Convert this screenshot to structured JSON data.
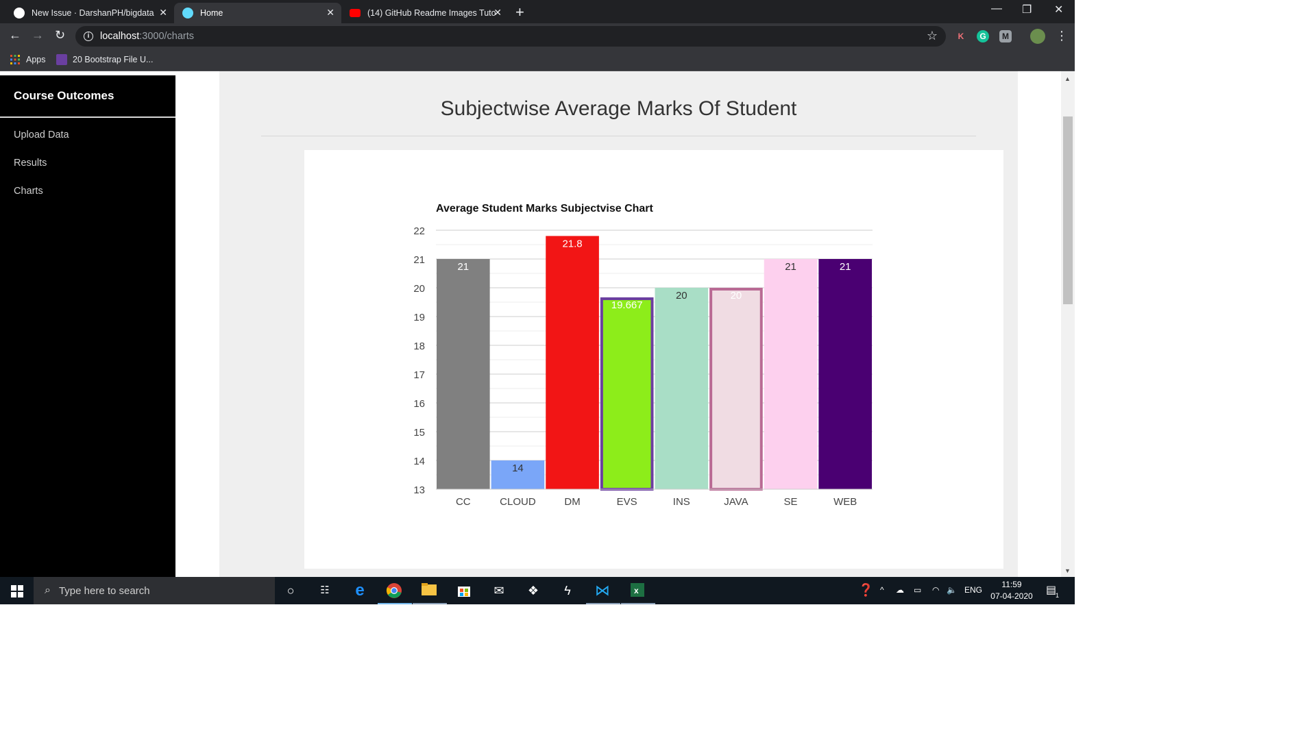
{
  "browser": {
    "tabs": [
      {
        "title": "New Issue · DarshanPH/bigdata",
        "icon": "github-icon",
        "active": false
      },
      {
        "title": "Home",
        "icon": "react-icon",
        "active": true
      },
      {
        "title": "(14) GitHub Readme Images Tuto",
        "icon": "youtube-icon",
        "active": false
      }
    ],
    "url_host": "localhost",
    "url_path": ":3000/charts",
    "bookmarks": [
      {
        "label": "Apps"
      },
      {
        "label": "20 Bootstrap File U..."
      }
    ],
    "extensions": [
      "K",
      "G",
      "M"
    ]
  },
  "sidebar": {
    "title": "Course Outcomes",
    "items": [
      {
        "label": "Upload Data"
      },
      {
        "label": "Results"
      },
      {
        "label": "Charts"
      }
    ]
  },
  "main": {
    "heading": "Subjectwise Average Marks Of Student"
  },
  "chart_data": {
    "type": "bar",
    "title": "Average Student Marks Subjectvise Chart",
    "categories": [
      "CC",
      "CLOUD",
      "DM",
      "EVS",
      "INS",
      "JAVA",
      "SE",
      "WEB"
    ],
    "values": [
      21,
      14,
      21.8,
      19.667,
      20,
      20,
      21,
      21
    ],
    "data_labels": [
      "21",
      "14",
      "21.8",
      "19.667",
      "20",
      "20",
      "21",
      "21"
    ],
    "colors": [
      "#808080",
      "#7aa6f8",
      "#f21515",
      "#8ded1a",
      "#a9dec6",
      "#f0dce3",
      "#fdd0ee",
      "#4a0072"
    ],
    "border_colors": [
      "#808080",
      "#7aa6f8",
      "#f21515",
      "#6b3fa0",
      "#a9dec6",
      "#b96a94",
      "#fdd0ee",
      "#4a0072"
    ],
    "label_colors": [
      "#ffffff",
      "#333333",
      "#ffffff",
      "#ffffff",
      "#333333",
      "#ffffff",
      "#333333",
      "#ffffff"
    ],
    "ylim": [
      13,
      22
    ],
    "yticks": [
      13,
      14,
      15,
      16,
      17,
      18,
      19,
      20,
      21,
      22
    ],
    "grid": true,
    "xlabel": "",
    "ylabel": ""
  },
  "taskbar": {
    "search_placeholder": "Type here to search",
    "tray_lang": "ENG",
    "time": "11:59",
    "date": "07-04-2020",
    "notification_count": "1"
  }
}
